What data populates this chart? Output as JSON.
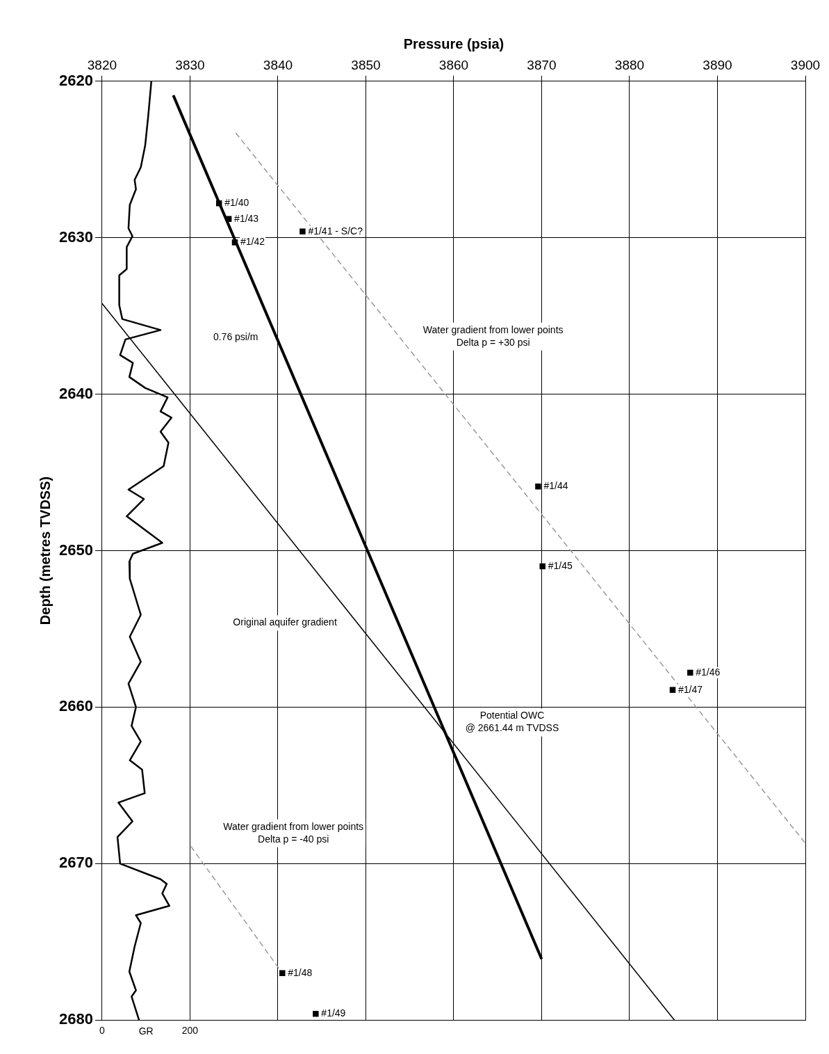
{
  "chart_data": {
    "type": "line",
    "xlabel": "Pressure (psia)",
    "ylabel": "Depth (metres TVDSS)",
    "x2label": "GR",
    "xlim": [
      3820,
      3900
    ],
    "xticks": [
      3820,
      3830,
      3840,
      3850,
      3860,
      3870,
      3880,
      3890,
      3900
    ],
    "ylim": [
      2680,
      2620
    ],
    "yticks": [
      2620,
      2630,
      2640,
      2650,
      2660,
      2670,
      2680
    ],
    "x2lim": [
      0,
      1600
    ],
    "x2ticks": [
      0,
      200
    ],
    "grid": true,
    "legend": false,
    "series": [
      {
        "type": "line",
        "axis": "x2",
        "color": "#000000",
        "marker": "none",
        "line_style": "solid",
        "x": [
          112,
          105,
          98,
          88,
          74,
          77,
          63,
          60,
          69,
          56,
          56,
          39,
          39,
          46,
          133,
          53,
          41,
          70,
          62,
          98,
          149,
          133,
          158,
          133,
          151,
          140,
          60,
          95,
          56,
          137,
          70,
          62,
          63,
          88,
          63,
          88,
          60,
          77,
          67,
          88,
          63,
          91,
          97,
          37,
          69,
          35,
          41,
          133,
          147,
          137,
          153,
          77,
          88,
          74,
          62,
          77,
          67,
          84
        ],
        "values": [
          2620.0,
          2622.2,
          2624.1,
          2625.5,
          2626.3,
          2626.9,
          2627.9,
          2629.4,
          2629.9,
          2630.6,
          2632.0,
          2632.4,
          2634.3,
          2635.2,
          2635.9,
          2636.5,
          2637.5,
          2638.0,
          2638.9,
          2639.6,
          2640.2,
          2641.1,
          2641.5,
          2642.4,
          2643.1,
          2644.6,
          2646.1,
          2646.7,
          2647.8,
          2649.5,
          2650.2,
          2650.7,
          2651.8,
          2654.1,
          2655.5,
          2657.1,
          2658.5,
          2660.0,
          2661.2,
          2662.2,
          2663.4,
          2664.0,
          2665.5,
          2666.1,
          2667.3,
          2668.3,
          2670.0,
          2671.0,
          2671.3,
          2671.9,
          2672.7,
          2673.3,
          2673.8,
          2675.3,
          2676.9,
          2678.1,
          2678.5,
          2680.0
        ]
      },
      {
        "type": "line",
        "color": "#000000",
        "marker": "none",
        "line_style": "solid",
        "x": [
          3828.1,
          3870
        ],
        "values": [
          2620.9,
          2676.1
        ]
      },
      {
        "type": "line",
        "color": "#000000",
        "marker": "none",
        "line_style": "solid",
        "x": [
          3820,
          3885.1
        ],
        "values": [
          2634.2,
          2680
        ]
      },
      {
        "type": "line",
        "color": "#9a9a9a",
        "marker": "none",
        "line_style": "dashed",
        "x": [
          3835.2,
          3900
        ],
        "values": [
          2623.3,
          2668.7
        ]
      },
      {
        "type": "line",
        "color": "#9a9a9a",
        "marker": "none",
        "line_style": "dashed",
        "x": [
          3830.1,
          3840.5
        ],
        "values": [
          2668.9,
          2677.0
        ]
      },
      {
        "type": "scatter",
        "color": "#000000",
        "marker": "square",
        "x": [
          3833.3,
          3834.4,
          3842.8,
          3835.1,
          3869.6,
          3870.1,
          3886.9,
          3884.9,
          3840.5,
          3844.3
        ],
        "values": [
          2627.8,
          2628.8,
          2629.6,
          2630.3,
          2645.9,
          2651.0,
          2657.8,
          2658.9,
          2677.0,
          2679.6
        ]
      }
    ],
    "annotations": [
      {
        "text": "#1/40",
        "x": 3833.3,
        "y": 2627.8
      },
      {
        "text": "#1/43",
        "x": 3834.4,
        "y": 2628.8
      },
      {
        "text": "#1/41 - S/C?",
        "x": 3842.8,
        "y": 2629.6
      },
      {
        "text": "#1/42",
        "x": 3835.1,
        "y": 2630.3
      },
      {
        "text": "#1/44",
        "x": 3869.6,
        "y": 2645.9
      },
      {
        "text": "#1/45",
        "x": 3870.1,
        "y": 2651.0
      },
      {
        "text": "#1/46",
        "x": 3886.9,
        "y": 2657.8
      },
      {
        "text": "#1/47",
        "x": 3884.9,
        "y": 2658.9
      },
      {
        "text": "#1/48",
        "x": 3840.5,
        "y": 2677.0
      },
      {
        "text": "#1/49",
        "x": 3844.3,
        "y": 2679.6
      },
      "0.76 psi/m",
      "Water gradient from lower points\nDelta p = +30 psi",
      "Original aquifer gradient",
      "Potential OWC\n@ 2661.44 m TVDSS",
      "Water gradient from lower points\nDelta p = -40 psi"
    ]
  }
}
